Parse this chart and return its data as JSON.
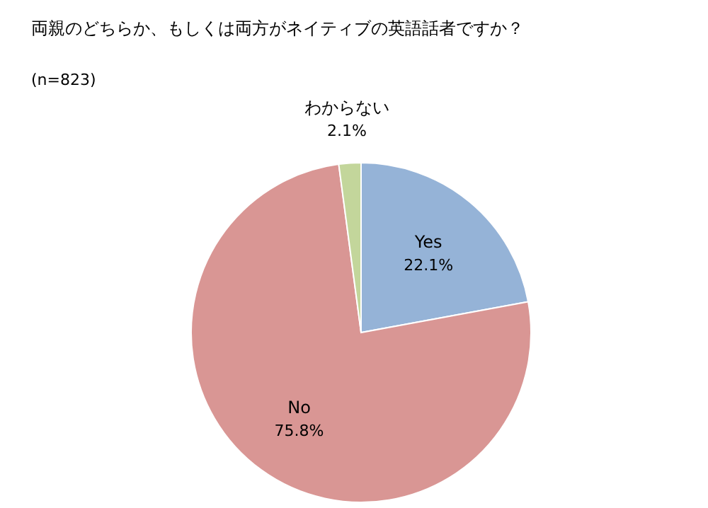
{
  "chart_data": {
    "type": "pie",
    "title": "両親のどちらか、もしくは両方がネイティブの英語話者ですか？",
    "subtitle": "(n=823)",
    "categories": [
      "Yes",
      "No",
      "わからない"
    ],
    "values": [
      22.1,
      75.8,
      2.1
    ],
    "colors": [
      "#95b3d7",
      "#d99694",
      "#c3d69b"
    ],
    "value_labels": [
      "22.1%",
      "75.8%",
      "2.1%"
    ]
  }
}
